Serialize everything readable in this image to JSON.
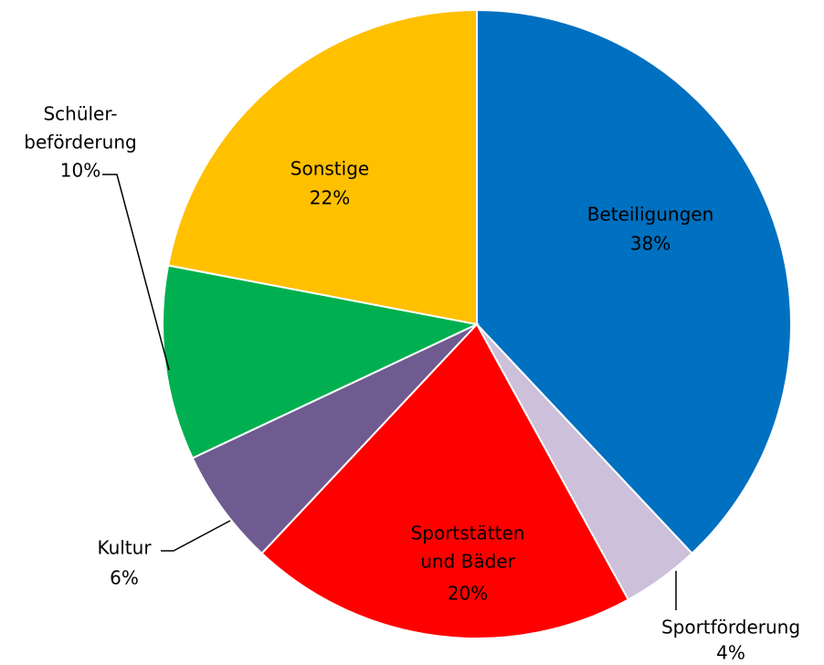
{
  "chart_data": {
    "type": "pie",
    "categories": [
      "Beteiligungen",
      "Sportförderung",
      "Sportstätten\nund Bäder",
      "Kultur",
      "Schüler-\nbeförderung",
      "Sonstige"
    ],
    "values": [
      38,
      4,
      20,
      6,
      10,
      22
    ],
    "value_labels": [
      "38%",
      "4%",
      "20%",
      "6%",
      "10%",
      "22%"
    ],
    "colors": [
      "#0070C0",
      "#CCC0DA",
      "#FF0000",
      "#6F5B8F",
      "#00B050",
      "#FFC000"
    ]
  }
}
